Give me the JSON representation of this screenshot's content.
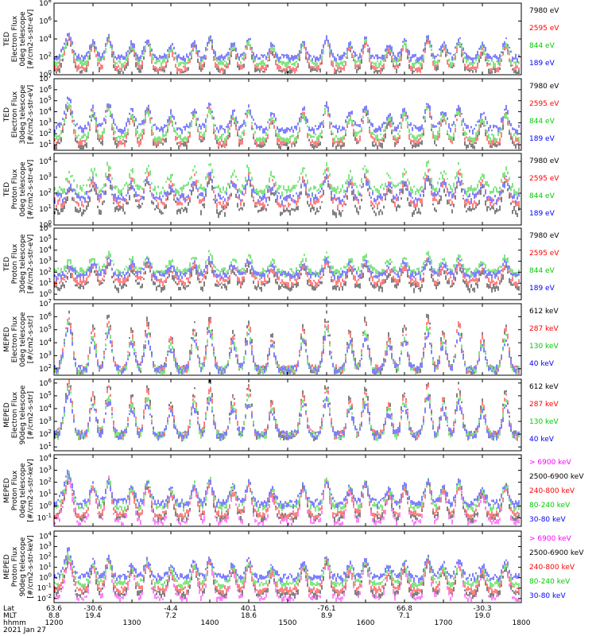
{
  "chart_data": [
    {
      "type": "line",
      "ylabel_lines": [
        "TED",
        "Electron Flux",
        "0deg telescope",
        "[#/cm2-s-str-eV]"
      ],
      "y_ticks": [
        "10^0",
        "10^2",
        "10^4",
        "10^6",
        "10^8"
      ],
      "ylim_log10": [
        0,
        8
      ],
      "legend": [
        {
          "label": "7980 eV",
          "color": "#000000"
        },
        {
          "label": "2595 eV",
          "color": "#ff0000"
        },
        {
          "label": "844 eV",
          "color": "#00cc00"
        },
        {
          "label": "189 eV",
          "color": "#0000ff"
        }
      ],
      "levels_log10": [
        0.6,
        0.9,
        1.5,
        2.1
      ],
      "spike_scale": 1.0
    },
    {
      "type": "line",
      "ylabel_lines": [
        "TED",
        "Electron Flux",
        "30deg telescope",
        "[#/cm2-s-str-eV]"
      ],
      "y_ticks": [
        "10^1",
        "10^2",
        "10^3",
        "10^4",
        "10^5",
        "10^6",
        "10^7"
      ],
      "ylim_log10": [
        0.5,
        7
      ],
      "legend": [
        {
          "label": "7980 eV",
          "color": "#000000"
        },
        {
          "label": "2595 eV",
          "color": "#ff0000"
        },
        {
          "label": "844 eV",
          "color": "#00cc00"
        },
        {
          "label": "189 eV",
          "color": "#0000ff"
        }
      ],
      "levels_log10": [
        1.1,
        1.4,
        1.8,
        2.6
      ],
      "spike_scale": 1.0
    },
    {
      "type": "line",
      "ylabel_lines": [
        "TED",
        "Proton Flux",
        "0deg telescope",
        "[#/cm2-s-str-eV]"
      ],
      "y_ticks": [
        "10^0",
        "10^1",
        "10^2",
        "10^3",
        "10^4"
      ],
      "ylim_log10": [
        0,
        4.5
      ],
      "legend": [
        {
          "label": "7980 eV",
          "color": "#000000"
        },
        {
          "label": "2595 eV",
          "color": "#ff0000"
        },
        {
          "label": "844 eV",
          "color": "#00cc00"
        },
        {
          "label": "189 eV",
          "color": "#0000ff"
        }
      ],
      "levels_log10": [
        1.0,
        1.5,
        2.3,
        1.8
      ],
      "spike_scale": 0.6
    },
    {
      "type": "line",
      "ylabel_lines": [
        "TED",
        "Proton Flux",
        "30deg telescope",
        "[#/cm2-s-str-eV]"
      ],
      "y_ticks": [
        "10^0",
        "10^1",
        "10^2",
        "10^3",
        "10^4",
        "10^5",
        "10^6"
      ],
      "ylim_log10": [
        -0.5,
        6
      ],
      "legend": [
        {
          "label": "7980 eV",
          "color": "#000000"
        },
        {
          "label": "2595 eV",
          "color": "#ff0000"
        },
        {
          "label": "844 eV",
          "color": "#00cc00"
        },
        {
          "label": "189 eV",
          "color": "#0000ff"
        }
      ],
      "levels_log10": [
        0.8,
        1.3,
        2.2,
        1.9
      ],
      "spike_scale": 0.6
    },
    {
      "type": "line",
      "ylabel_lines": [
        "MEPED",
        "Electron Flux",
        "0deg telescope",
        "[#/cm2-s-str]"
      ],
      "y_ticks": [
        "10^2",
        "10^3",
        "10^4",
        "10^5",
        "10^6",
        "10^7"
      ],
      "ylim_log10": [
        1.5,
        7
      ],
      "legend": [
        {
          "label": "612 keV",
          "color": "#000000"
        },
        {
          "label": "287 keV",
          "color": "#ff0000"
        },
        {
          "label": "130 keV",
          "color": "#00cc00"
        },
        {
          "label": "40 keV",
          "color": "#0000ff"
        }
      ],
      "levels_log10": [
        2.0,
        2.1,
        2.0,
        2.1
      ],
      "spike_scale": 1.2
    },
    {
      "type": "line",
      "ylabel_lines": [
        "MEPED",
        "Electron Flux",
        "90deg telescope",
        "[#/cm2-s-str]"
      ],
      "y_ticks": [
        "10^1",
        "10^2",
        "10^3",
        "10^4",
        "10^5",
        "10^6"
      ],
      "ylim_log10": [
        0.7,
        6.3
      ],
      "legend": [
        {
          "label": "612 keV",
          "color": "#000000"
        },
        {
          "label": "287 keV",
          "color": "#ff0000"
        },
        {
          "label": "130 keV",
          "color": "#00cc00"
        },
        {
          "label": "40 keV",
          "color": "#0000ff"
        }
      ],
      "levels_log10": [
        2.0,
        2.1,
        2.0,
        2.1
      ],
      "spike_scale": 1.2
    },
    {
      "type": "line",
      "ylabel_lines": [
        "MEPED",
        "Proton Flux",
        "0deg telescope",
        "[#/cm2-s-str-keV]"
      ],
      "y_ticks": [
        "10^-1",
        "10^0",
        "10^1",
        "10^2",
        "10^3",
        "10^4"
      ],
      "ylim_log10": [
        -1.7,
        4.3
      ],
      "legend": [
        {
          "label": "> 6900 keV",
          "color": "#ff00ff"
        },
        {
          "label": "2500-6900 keV",
          "color": "#000000"
        },
        {
          "label": "240-800 keV",
          "color": "#ff0000"
        },
        {
          "label": "80-240 keV",
          "color": "#00cc00"
        },
        {
          "label": "30-80 keV",
          "color": "#0000ff"
        }
      ],
      "levels_log10": [
        -1.2,
        -0.8,
        -0.6,
        0.1,
        0.4
      ],
      "spike_scale": 1.0
    },
    {
      "type": "line",
      "ylabel_lines": [
        "MEPED",
        "Proton Flux",
        "90deg telescope",
        "[#/cm2-s-str-keV]"
      ],
      "y_ticks": [
        "10^-2",
        "10^-1",
        "10^0",
        "10^1",
        "10^2",
        "10^3",
        "10^4"
      ],
      "ylim_log10": [
        -2.4,
        4.5
      ],
      "legend": [
        {
          "label": "> 6900 keV",
          "color": "#ff00ff"
        },
        {
          "label": "2500-6900 keV",
          "color": "#000000"
        },
        {
          "label": "240-800 keV",
          "color": "#ff0000"
        },
        {
          "label": "80-240 keV",
          "color": "#00cc00"
        },
        {
          "label": "30-80 keV",
          "color": "#0000ff"
        }
      ],
      "levels_log10": [
        -1.8,
        -1.4,
        -1.0,
        -0.4,
        0.2
      ],
      "spike_scale": 1.0
    }
  ],
  "x_axis": {
    "row_labels": [
      "Lat",
      "MLT",
      "hhmm"
    ],
    "date_label": "2021 Jan 27",
    "xlim_hhmm": [
      "1200",
      "1800"
    ],
    "ticks": [
      {
        "time": "1200",
        "lat": "63.6",
        "mlt": "8.8"
      },
      {
        "time": "1230",
        "lat": "-30.6",
        "mlt": "19.4"
      },
      {
        "time": "1300",
        "lat": "",
        "mlt": ""
      },
      {
        "time": "1330",
        "lat": "-4.4",
        "mlt": "7.2"
      },
      {
        "time": "1400",
        "lat": "",
        "mlt": ""
      },
      {
        "time": "1430",
        "lat": "40.1",
        "mlt": "18.6"
      },
      {
        "time": "1500",
        "lat": "",
        "mlt": ""
      },
      {
        "time": "1530",
        "lat": "-76.1",
        "mlt": "8.9"
      },
      {
        "time": "1600",
        "lat": "",
        "mlt": ""
      },
      {
        "time": "1630",
        "lat": "66.8",
        "mlt": "7.1"
      },
      {
        "time": "1700",
        "lat": "",
        "mlt": ""
      },
      {
        "time": "1730",
        "lat": "-30.3",
        "mlt": "19.0"
      },
      {
        "time": "1800",
        "lat": "",
        "mlt": ""
      }
    ],
    "hhmm_labels": [
      "1200",
      "1300",
      "1400",
      "1500",
      "1600",
      "1700",
      "1800"
    ],
    "event_times_hhmm": [
      "1212",
      "1230",
      "1242",
      "1300",
      "1312",
      "1330",
      "1348",
      "1400",
      "1418",
      "1430",
      "1448",
      "1512",
      "1530",
      "1548",
      "1600",
      "1618",
      "1630",
      "1648",
      "1700",
      "1712",
      "1730",
      "1748"
    ]
  }
}
